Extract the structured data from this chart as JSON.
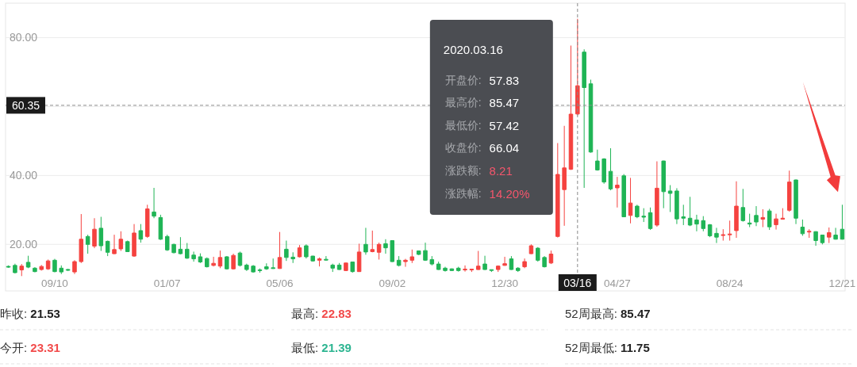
{
  "chart_data": {
    "type": "candlestick",
    "x": [
      "2018-07-23",
      "2018-07-30",
      "2018-08-06",
      "2018-08-13",
      "2018-08-20",
      "2018-08-27",
      "2018-09-03",
      "2018-09-10",
      "2018-09-17",
      "2018-09-24",
      "2018-10-01",
      "2018-10-08",
      "2018-10-15",
      "2018-10-22",
      "2018-10-29",
      "2018-11-05",
      "2018-11-12",
      "2018-11-19",
      "2018-11-26",
      "2018-12-03",
      "2018-12-10",
      "2018-12-17",
      "2018-12-24",
      "2018-12-31",
      "2019-01-07",
      "2019-01-14",
      "2019-01-21",
      "2019-01-28",
      "2019-02-04",
      "2019-02-11",
      "2019-02-18",
      "2019-02-25",
      "2019-03-04",
      "2019-03-11",
      "2019-03-18",
      "2019-03-25",
      "2019-04-01",
      "2019-04-08",
      "2019-04-15",
      "2019-04-22",
      "2019-04-29",
      "2019-05-06",
      "2019-05-13",
      "2019-05-20",
      "2019-05-27",
      "2019-06-03",
      "2019-06-10",
      "2019-06-17",
      "2019-06-24",
      "2019-07-01",
      "2019-07-08",
      "2019-07-15",
      "2019-07-22",
      "2019-07-29",
      "2019-08-05",
      "2019-08-12",
      "2019-08-19",
      "2019-08-26",
      "2019-09-02",
      "2019-09-09",
      "2019-09-16",
      "2019-09-23",
      "2019-09-30",
      "2019-10-07",
      "2019-10-14",
      "2019-10-21",
      "2019-10-28",
      "2019-11-04",
      "2019-11-11",
      "2019-11-18",
      "2019-11-25",
      "2019-12-02",
      "2019-12-09",
      "2019-12-16",
      "2019-12-23",
      "2019-12-30",
      "2020-01-06",
      "2020-01-13",
      "2020-01-20",
      "2020-01-27",
      "2020-02-03",
      "2020-02-10",
      "2020-02-17",
      "2020-02-24",
      "2020-03-02",
      "2020-03-09",
      "2020-03-16",
      "2020-03-23",
      "2020-03-30",
      "2020-04-06",
      "2020-04-13",
      "2020-04-20",
      "2020-04-27",
      "2020-05-04",
      "2020-05-11",
      "2020-05-18",
      "2020-05-25",
      "2020-06-01",
      "2020-06-08",
      "2020-06-15",
      "2020-06-22",
      "2020-06-29",
      "2020-07-06",
      "2020-07-13",
      "2020-07-20",
      "2020-07-27",
      "2020-08-03",
      "2020-08-10",
      "2020-08-17",
      "2020-08-24",
      "2020-08-31",
      "2020-09-07",
      "2020-09-14",
      "2020-09-21",
      "2020-09-28",
      "2020-10-05",
      "2020-10-12",
      "2020-10-19",
      "2020-10-26",
      "2020-11-02",
      "2020-11-09",
      "2020-11-16",
      "2020-11-23",
      "2020-11-30",
      "2020-12-07",
      "2020-12-14",
      "2020-12-21"
    ],
    "ohlc": [
      [
        13.6,
        13.9,
        13.2,
        13.4
      ],
      [
        13.9,
        14.4,
        11.6,
        11.8
      ],
      [
        12.6,
        14.3,
        10.8,
        13.7
      ],
      [
        14.8,
        16.7,
        13.1,
        13.4
      ],
      [
        13.1,
        13.4,
        11.9,
        12.1
      ],
      [
        12.7,
        14.0,
        12.4,
        13.6
      ],
      [
        12.9,
        15.6,
        12.6,
        15.2
      ],
      [
        15.4,
        15.8,
        11.9,
        12.1
      ],
      [
        13.1,
        13.9,
        11.4,
        12.0
      ],
      [
        12.7,
        12.9,
        12.3,
        12.5
      ],
      [
        12.0,
        15.4,
        11.4,
        15.0
      ],
      [
        15.0,
        28.8,
        14.6,
        21.5
      ],
      [
        22.3,
        22.8,
        17.3,
        20.0
      ],
      [
        19.5,
        27.6,
        18.9,
        24.4
      ],
      [
        24.7,
        28.0,
        18.1,
        19.6
      ],
      [
        20.9,
        21.1,
        16.6,
        17.7
      ],
      [
        17.3,
        22.8,
        17.2,
        18.5
      ],
      [
        18.7,
        23.8,
        18.1,
        21.5
      ],
      [
        20.8,
        21.1,
        17.8,
        17.9
      ],
      [
        16.6,
        25.9,
        16.4,
        23.3
      ],
      [
        24.0,
        25.9,
        20.5,
        21.5
      ],
      [
        22.3,
        31.5,
        21.9,
        30.3
      ],
      [
        29.4,
        36.4,
        27.6,
        28.2
      ],
      [
        27.8,
        28.6,
        21.3,
        21.5
      ],
      [
        22.3,
        22.8,
        18.1,
        18.4
      ],
      [
        20.0,
        20.2,
        17.4,
        17.6
      ],
      [
        18.6,
        22.1,
        17.1,
        17.3
      ],
      [
        18.6,
        20.4,
        15.8,
        16.0
      ],
      [
        16.9,
        17.9,
        15.0,
        15.8
      ],
      [
        16.4,
        17.4,
        14.6,
        14.9
      ],
      [
        15.9,
        16.2,
        13.3,
        13.5
      ],
      [
        13.9,
        16.4,
        13.6,
        14.5
      ],
      [
        13.7,
        18.2,
        13.1,
        16.2
      ],
      [
        16.4,
        16.6,
        12.7,
        12.9
      ],
      [
        12.9,
        17.3,
        12.7,
        16.8
      ],
      [
        17.5,
        17.9,
        13.6,
        13.9
      ],
      [
        14.0,
        14.4,
        12.3,
        12.7
      ],
      [
        13.7,
        14.0,
        11.8,
        12.0
      ],
      [
        12.6,
        13.0,
        11.8,
        12.4
      ],
      [
        13.5,
        14.5,
        12.6,
        12.9
      ],
      [
        13.2,
        15.9,
        12.9,
        13.0
      ],
      [
        13.0,
        23.6,
        12.9,
        16.2
      ],
      [
        18.6,
        21.1,
        15.2,
        16.2
      ],
      [
        16.3,
        17.7,
        14.6,
        15.8
      ],
      [
        16.4,
        19.8,
        16.2,
        19.0
      ],
      [
        19.6,
        20.0,
        15.9,
        16.4
      ],
      [
        16.6,
        16.7,
        15.0,
        15.2
      ],
      [
        15.4,
        16.2,
        13.6,
        15.8
      ],
      [
        15.6,
        16.6,
        15.3,
        15.5
      ],
      [
        14.0,
        14.4,
        12.0,
        13.1
      ],
      [
        14.0,
        14.6,
        12.6,
        12.7
      ],
      [
        12.4,
        14.7,
        12.3,
        14.6
      ],
      [
        14.9,
        15.0,
        11.8,
        12.1
      ],
      [
        12.1,
        20.2,
        12.0,
        17.8
      ],
      [
        20.0,
        24.8,
        17.0,
        17.8
      ],
      [
        17.9,
        24.0,
        17.7,
        18.5
      ],
      [
        17.7,
        20.5,
        15.6,
        20.0
      ],
      [
        20.2,
        21.5,
        17.3,
        19.0
      ],
      [
        21.1,
        21.2,
        14.9,
        15.0
      ],
      [
        15.4,
        16.6,
        13.6,
        13.9
      ],
      [
        15.0,
        15.8,
        13.5,
        15.4
      ],
      [
        15.4,
        18.5,
        14.6,
        16.4
      ],
      [
        18.1,
        18.2,
        16.9,
        17.1
      ],
      [
        18.2,
        20.5,
        15.2,
        15.4
      ],
      [
        15.6,
        16.6,
        13.9,
        14.3
      ],
      [
        14.3,
        15.0,
        12.6,
        12.7
      ],
      [
        13.1,
        13.5,
        12.1,
        12.4
      ],
      [
        12.9,
        13.0,
        12.3,
        12.4
      ],
      [
        13.1,
        13.5,
        12.1,
        12.4
      ],
      [
        12.6,
        13.9,
        12.1,
        12.8
      ],
      [
        12.6,
        12.9,
        12.0,
        12.8
      ],
      [
        12.7,
        18.1,
        12.6,
        13.7
      ],
      [
        14.3,
        16.7,
        12.6,
        12.7
      ],
      [
        12.6,
        12.7,
        12.0,
        12.5
      ],
      [
        12.7,
        13.9,
        12.0,
        13.7
      ],
      [
        13.9,
        16.4,
        13.8,
        14.4
      ],
      [
        15.8,
        16.6,
        12.6,
        12.7
      ],
      [
        13.1,
        13.4,
        12.0,
        12.4
      ],
      [
        13.5,
        15.9,
        13.1,
        15.0
      ],
      [
        17.3,
        20.0,
        17.2,
        19.6
      ],
      [
        18.9,
        19.2,
        15.0,
        15.4
      ],
      [
        16.2,
        16.6,
        13.3,
        13.5
      ],
      [
        14.6,
        18.2,
        14.3,
        17.2
      ],
      [
        22.3,
        49.4,
        22.0,
        40.3
      ],
      [
        35.9,
        54.4,
        25.4,
        42.2
      ],
      [
        41.8,
        77.7,
        41.6,
        57.8
      ],
      [
        57.83,
        85.47,
        57.42,
        66.04
      ],
      [
        75.8,
        76.6,
        36.4,
        65.5
      ],
      [
        66.6,
        67.8,
        46.6,
        46.8
      ],
      [
        44.2,
        47.5,
        41.4,
        41.6
      ],
      [
        44.8,
        45.0,
        37.6,
        38.1
      ],
      [
        41.2,
        47.9,
        35.7,
        36.1
      ],
      [
        36.4,
        39.6,
        30.7,
        37.2
      ],
      [
        39.9,
        40.4,
        27.9,
        28.0
      ],
      [
        28.4,
        39.3,
        26.1,
        32.0
      ],
      [
        31.1,
        31.5,
        27.6,
        28.0
      ],
      [
        28.2,
        30.5,
        26.5,
        27.9
      ],
      [
        29.2,
        30.7,
        24.2,
        24.6
      ],
      [
        25.6,
        44.1,
        25.1,
        36.3
      ],
      [
        44.2,
        44.3,
        30.5,
        35.3
      ],
      [
        35.5,
        37.2,
        29.4,
        34.8
      ],
      [
        35.5,
        36.3,
        25.9,
        27.4
      ],
      [
        28.0,
        31.5,
        25.6,
        27.6
      ],
      [
        27.6,
        33.8,
        25.3,
        25.6
      ],
      [
        27.1,
        28.6,
        23.8,
        25.9
      ],
      [
        26.9,
        28.2,
        23.8,
        24.6
      ],
      [
        25.7,
        25.9,
        22.1,
        22.5
      ],
      [
        23.2,
        24.8,
        20.4,
        22.1
      ],
      [
        22.6,
        24.4,
        21.1,
        22.8
      ],
      [
        22.8,
        26.9,
        21.1,
        23.0
      ],
      [
        24.0,
        38.3,
        21.9,
        31.1
      ],
      [
        30.7,
        36.1,
        26.6,
        26.9
      ],
      [
        26.2,
        28.9,
        25.0,
        25.9
      ],
      [
        28.4,
        31.1,
        25.3,
        26.5
      ],
      [
        27.3,
        30.2,
        25.0,
        27.8
      ],
      [
        29.7,
        30.3,
        24.2,
        25.1
      ],
      [
        25.7,
        28.9,
        24.3,
        27.4
      ],
      [
        27.3,
        30.5,
        27.2,
        27.6
      ],
      [
        29.9,
        41.4,
        29.5,
        38.1
      ],
      [
        38.7,
        38.8,
        25.9,
        27.6
      ],
      [
        25.0,
        27.2,
        22.5,
        23.1
      ],
      [
        23.6,
        24.4,
        21.9,
        23.8
      ],
      [
        23.7,
        23.8,
        19.6,
        21.1
      ],
      [
        22.7,
        22.8,
        20.0,
        20.5
      ],
      [
        22.1,
        24.9,
        20.4,
        23.4
      ],
      [
        22.7,
        24.8,
        21.4,
        21.5
      ],
      [
        24.4,
        31.5,
        21.4,
        21.5
      ]
    ],
    "colors": [
      "#1fb455",
      "#1fb455",
      "#f5423f",
      "#1fb455",
      "#1fb455",
      "#f5423f",
      "#f5423f",
      "#1fb455",
      "#1fb455",
      "#1fb455",
      "#f5423f",
      "#f5423f",
      "#1fb455",
      "#f5423f",
      "#1fb455",
      "#1fb455",
      "#f5423f",
      "#f5423f",
      "#1fb455",
      "#f5423f",
      "#1fb455",
      "#f5423f",
      "#1fb455",
      "#1fb455",
      "#1fb455",
      "#1fb455",
      "#1fb455",
      "#1fb455",
      "#1fb455",
      "#1fb455",
      "#1fb455",
      "#f5423f",
      "#f5423f",
      "#1fb455",
      "#f5423f",
      "#1fb455",
      "#1fb455",
      "#1fb455",
      "#1fb455",
      "#1fb455",
      "#1fb455",
      "#f5423f",
      "#1fb455",
      "#1fb455",
      "#f5423f",
      "#1fb455",
      "#1fb455",
      "#f5423f",
      "#1fb455",
      "#1fb455",
      "#1fb455",
      "#f5423f",
      "#1fb455",
      "#f5423f",
      "#1fb455",
      "#f5423f",
      "#f5423f",
      "#1fb455",
      "#1fb455",
      "#1fb455",
      "#f5423f",
      "#f5423f",
      "#1fb455",
      "#1fb455",
      "#1fb455",
      "#1fb455",
      "#1fb455",
      "#1fb455",
      "#1fb455",
      "#f5423f",
      "#f5423f",
      "#f5423f",
      "#1fb455",
      "#1fb455",
      "#f5423f",
      "#f5423f",
      "#1fb455",
      "#1fb455",
      "#f5423f",
      "#f5423f",
      "#1fb455",
      "#1fb455",
      "#f5423f",
      "#f5423f",
      "#f5423f",
      "#f5423f",
      "#f5423f",
      "#1fb455",
      "#1fb455",
      "#1fb455",
      "#1fb455",
      "#1fb455",
      "#f5423f",
      "#1fb455",
      "#f5423f",
      "#1fb455",
      "#1fb455",
      "#1fb455",
      "#f5423f",
      "#1fb455",
      "#1fb455",
      "#1fb455",
      "#1fb455",
      "#1fb455",
      "#1fb455",
      "#1fb455",
      "#1fb455",
      "#1fb455",
      "#f5423f",
      "#f5423f",
      "#f5423f",
      "#1fb455",
      "#1fb455",
      "#1fb455",
      "#f5423f",
      "#1fb455",
      "#f5423f",
      "#f5423f",
      "#f5423f",
      "#1fb455",
      "#1fb455",
      "#f5423f",
      "#1fb455",
      "#1fb455",
      "#f5423f",
      "#1fb455",
      "#1fb455"
    ],
    "xlim": [
      "2018-07-20",
      "2020-12-24"
    ],
    "xticks": [
      {
        "value": "2018-09-10",
        "label": "09/10"
      },
      {
        "value": "2019-01-07",
        "label": "01/07"
      },
      {
        "value": "2019-05-06",
        "label": "05/06"
      },
      {
        "value": "2019-09-02",
        "label": "09/02"
      },
      {
        "value": "2019-12-30",
        "label": "12/30"
      },
      {
        "value": "2020-04-27",
        "label": "04/27"
      },
      {
        "value": "2020-08-24",
        "label": "08/24"
      },
      {
        "value": "2020-12-21",
        "label": "12/21"
      }
    ],
    "ylim": [
      6.5,
      90
    ],
    "yticks": [
      {
        "value": 20,
        "label": "20.00"
      },
      {
        "value": 40,
        "label": "40.00"
      },
      {
        "value": 60,
        "label": null
      },
      {
        "value": 80,
        "label": "80.00"
      }
    ],
    "grid": "y",
    "ref_lines": [
      {
        "axis": "y",
        "value": 60.35,
        "label": "60.35",
        "line_style": "dashed",
        "color": "#8a8a8a"
      },
      {
        "axis": "x",
        "value": "2020-03-16",
        "label": "03/16",
        "line_style": "dashed",
        "color": "#8a8a8a"
      }
    ],
    "annotations": [
      "2020.03.16",
      "开盘价: 57.83",
      "最高价: 85.47",
      "最低价: 57.42",
      "收盘价: 66.04",
      "涨跌额: 8.21",
      "涨跌幅: 14.20%",
      "昨收: 21.53",
      "最高: 22.83",
      "52周最高: 85.47",
      "今开: 23.31",
      "最低: 21.39",
      "52周最低: 11.75"
    ]
  }
}
